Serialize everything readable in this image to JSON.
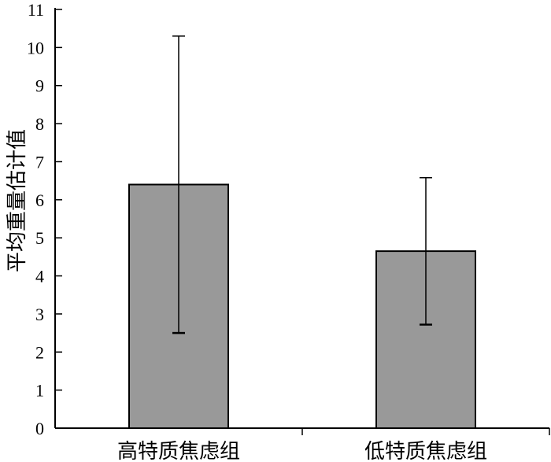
{
  "chart_data": {
    "type": "bar",
    "categories": [
      "高特质焦虑组",
      "低特质焦虑组"
    ],
    "values": [
      6.4,
      4.65
    ],
    "error_bars": [
      {
        "low": 2.5,
        "high": 10.3
      },
      {
        "low": 2.72,
        "high": 6.58
      }
    ],
    "ylabel": "平均重量估计值",
    "xlabel": "",
    "ylim": [
      0,
      11
    ],
    "yticks": [
      0,
      1,
      2,
      3,
      4,
      5,
      6,
      7,
      8,
      9,
      10,
      11
    ],
    "bar_color": "#999999",
    "grid": false
  }
}
